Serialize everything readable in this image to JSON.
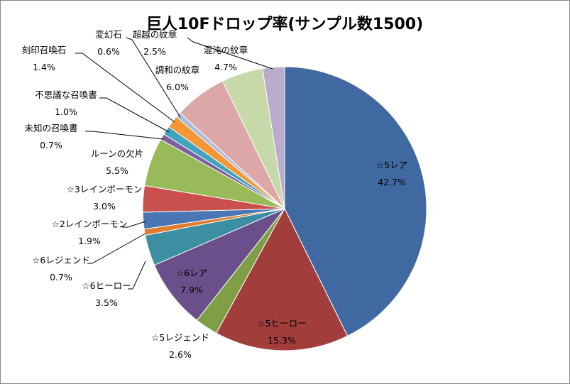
{
  "chart_data": {
    "type": "pie",
    "title": "巨人10Fドロップ率(サンプル数1500)",
    "series": [
      {
        "name": "☆5レア",
        "percent_label": "42.7%",
        "value": 42.7,
        "color": "#4169a1"
      },
      {
        "name": "☆5ヒーロー",
        "percent_label": "15.3%",
        "value": 15.3,
        "color": "#a13e3c"
      },
      {
        "name": "☆5レジェンド",
        "percent_label": "2.6%",
        "value": 2.6,
        "color": "#7f9e45"
      },
      {
        "name": "☆6レア",
        "percent_label": "7.9%",
        "value": 7.9,
        "color": "#6a4f8a"
      },
      {
        "name": "☆6ヒーロー",
        "percent_label": "3.5%",
        "value": 3.5,
        "color": "#3c8fa0"
      },
      {
        "name": "☆6レジェンド",
        "percent_label": "0.7%",
        "value": 0.7,
        "color": "#e07c2c"
      },
      {
        "name": "☆2レインボーモン",
        "percent_label": "1.9%",
        "value": 1.9,
        "color": "#4a76b5"
      },
      {
        "name": "☆3レインボーモン",
        "percent_label": "3.0%",
        "value": 3.0,
        "color": "#c9504c"
      },
      {
        "name": "ルーンの欠片",
        "percent_label": "5.5%",
        "value": 5.5,
        "color": "#98ba58"
      },
      {
        "name": "未知の召喚書",
        "percent_label": "0.7%",
        "value": 0.7,
        "color": "#7d5fa0"
      },
      {
        "name": "不思議な召喚書",
        "percent_label": "1.0%",
        "value": 1.0,
        "color": "#40a4bd"
      },
      {
        "name": "刻印召喚石",
        "percent_label": "1.4%",
        "value": 1.4,
        "color": "#f59637"
      },
      {
        "name": "変幻石",
        "percent_label": "0.6%",
        "value": 0.6,
        "color": "#a8bcdb"
      },
      {
        "name": "調和の紋章",
        "percent_label": "6.0%",
        "value": 6.0,
        "color": "#dca8a7"
      },
      {
        "name": "混沌の紋章",
        "percent_label": "4.7%",
        "value": 4.7,
        "color": "#c7d9a9"
      },
      {
        "name": "超越の紋章",
        "percent_label": "2.5%",
        "value": 2.5,
        "color": "#bbaccb"
      }
    ]
  }
}
